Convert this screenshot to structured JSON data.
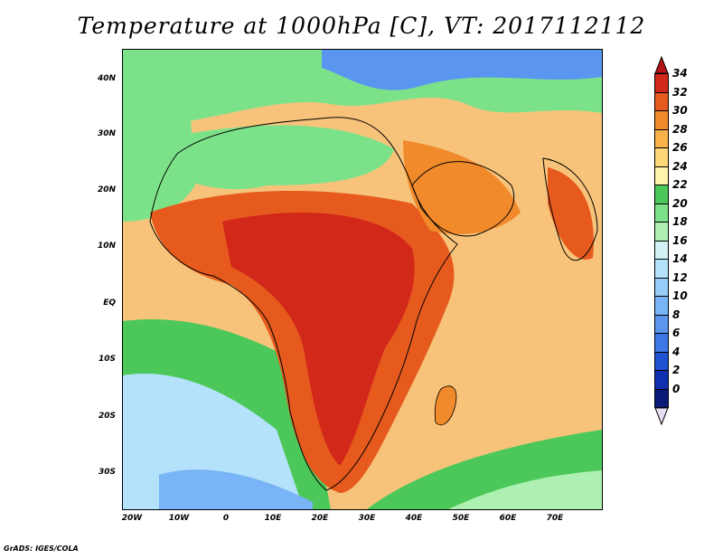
{
  "title": "Temperature at 1000hPa [C], VT: 2017112112",
  "credit": "GrADS: IGES/COLA",
  "map": {
    "lat_labels": [
      "40N",
      "30N",
      "20N",
      "10N",
      "EQ",
      "10S",
      "20S",
      "30S"
    ],
    "lon_labels": [
      "20W",
      "10W",
      "0",
      "10E",
      "20E",
      "30E",
      "40E",
      "50E",
      "60E",
      "70E"
    ],
    "lon_range": [
      -20,
      80
    ],
    "lat_range": [
      -35,
      45
    ]
  },
  "colorbar": {
    "levels": [
      "0",
      "2",
      "4",
      "6",
      "8",
      "10",
      "12",
      "14",
      "16",
      "18",
      "20",
      "22",
      "24",
      "26",
      "28",
      "30",
      "32",
      "34"
    ],
    "colors": [
      "#0a1a78",
      "#1030b0",
      "#1e54d2",
      "#3c78e6",
      "#5a96f0",
      "#78b4f6",
      "#96ccf8",
      "#b4e2fa",
      "#d2f2f4",
      "#aef0b2",
      "#7ce28a",
      "#4cc85a",
      "#fff2aa",
      "#fcd878",
      "#f9b24a",
      "#f08a2a",
      "#e65a1e",
      "#d2281a",
      "#b41414"
    ],
    "under_color": "#e8dcf4",
    "over_color": "#b41414"
  }
}
